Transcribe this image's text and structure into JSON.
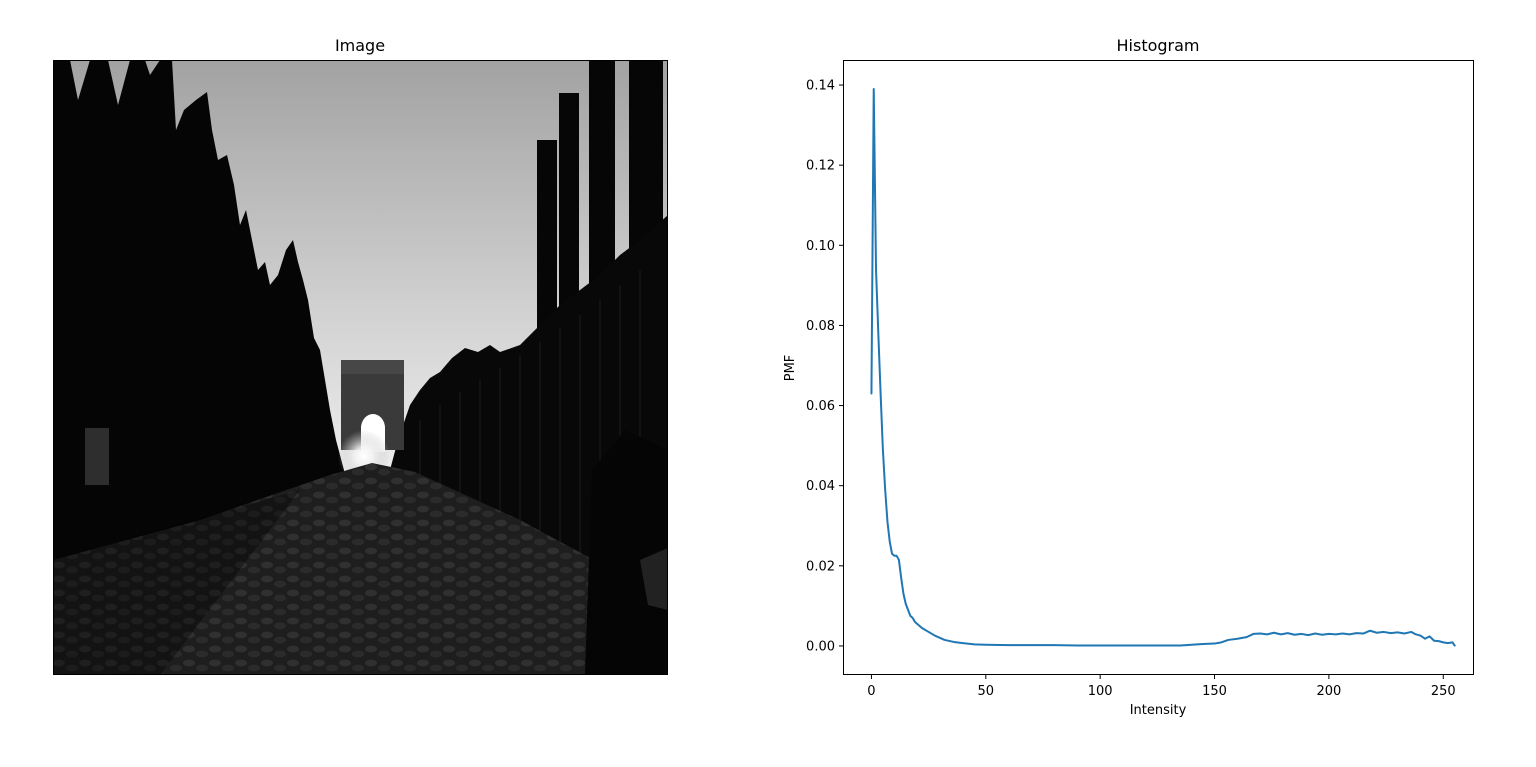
{
  "figure": {
    "background": "#ffffff"
  },
  "image_panel": {
    "title": "Image",
    "subject": "grayscale photo: cobblestone road between tall dark cypress trees and iron railings, leading to a stone triumphal arch backlit by the sun, ancient columns on the right"
  },
  "chart_data": [
    {
      "type": "line",
      "title": "Histogram",
      "xlabel": "Intensity",
      "ylabel": "PMF",
      "xlim": [
        -12,
        263
      ],
      "ylim": [
        -0.007,
        0.146
      ],
      "xticks": [
        0,
        50,
        100,
        150,
        200,
        250
      ],
      "xtick_labels": [
        "0",
        "50",
        "100",
        "150",
        "200",
        "250"
      ],
      "yticks": [
        0.0,
        0.02,
        0.04,
        0.06,
        0.08,
        0.1,
        0.12,
        0.14
      ],
      "ytick_labels": [
        "0.00",
        "0.02",
        "0.04",
        "0.06",
        "0.08",
        "0.10",
        "0.12",
        "0.14"
      ],
      "grid": false,
      "legend": "none",
      "series": [
        {
          "color": "#1f77b4",
          "points": [
            [
              0,
              0.063
            ],
            [
              1,
              0.139
            ],
            [
              2,
              0.094
            ],
            [
              3,
              0.078
            ],
            [
              4,
              0.063
            ],
            [
              5,
              0.049
            ],
            [
              6,
              0.039
            ],
            [
              7,
              0.031
            ],
            [
              8,
              0.026
            ],
            [
              9,
              0.023
            ],
            [
              10,
              0.0225
            ],
            [
              11,
              0.0225
            ],
            [
              12,
              0.0215
            ],
            [
              13,
              0.017
            ],
            [
              14,
              0.013
            ],
            [
              15,
              0.0105
            ],
            [
              16,
              0.009
            ],
            [
              17,
              0.0075
            ],
            [
              18,
              0.007
            ],
            [
              19,
              0.006
            ],
            [
              20,
              0.0055
            ],
            [
              22,
              0.0045
            ],
            [
              25,
              0.0035
            ],
            [
              28,
              0.0025
            ],
            [
              32,
              0.0015
            ],
            [
              36,
              0.001
            ],
            [
              40,
              0.0007
            ],
            [
              45,
              0.0004
            ],
            [
              50,
              0.0003
            ],
            [
              60,
              0.0002
            ],
            [
              70,
              0.0002
            ],
            [
              80,
              0.0002
            ],
            [
              90,
              0.0001
            ],
            [
              100,
              0.0001
            ],
            [
              110,
              0.0001
            ],
            [
              120,
              0.0001
            ],
            [
              130,
              0.0001
            ],
            [
              135,
              0.0001
            ],
            [
              140,
              0.0003
            ],
            [
              145,
              0.0005
            ],
            [
              150,
              0.0006
            ],
            [
              153,
              0.0009
            ],
            [
              156,
              0.0015
            ],
            [
              160,
              0.0018
            ],
            [
              164,
              0.0022
            ],
            [
              167,
              0.003
            ],
            [
              170,
              0.0031
            ],
            [
              173,
              0.0029
            ],
            [
              176,
              0.0033
            ],
            [
              179,
              0.0029
            ],
            [
              182,
              0.0032
            ],
            [
              185,
              0.0028
            ],
            [
              188,
              0.003
            ],
            [
              191,
              0.0027
            ],
            [
              194,
              0.0031
            ],
            [
              197,
              0.0028
            ],
            [
              200,
              0.003
            ],
            [
              203,
              0.0029
            ],
            [
              206,
              0.0031
            ],
            [
              209,
              0.0029
            ],
            [
              212,
              0.0032
            ],
            [
              215,
              0.0031
            ],
            [
              218,
              0.0038
            ],
            [
              221,
              0.0033
            ],
            [
              224,
              0.0035
            ],
            [
              227,
              0.0032
            ],
            [
              230,
              0.0034
            ],
            [
              233,
              0.0031
            ],
            [
              236,
              0.0035
            ],
            [
              238,
              0.0029
            ],
            [
              240,
              0.0026
            ],
            [
              242,
              0.0018
            ],
            [
              244,
              0.0024
            ],
            [
              246,
              0.0013
            ],
            [
              248,
              0.0012
            ],
            [
              250,
              0.0009
            ],
            [
              252,
              0.0007
            ],
            [
              254,
              0.0009
            ],
            [
              255,
              0.0001
            ]
          ]
        }
      ]
    }
  ]
}
